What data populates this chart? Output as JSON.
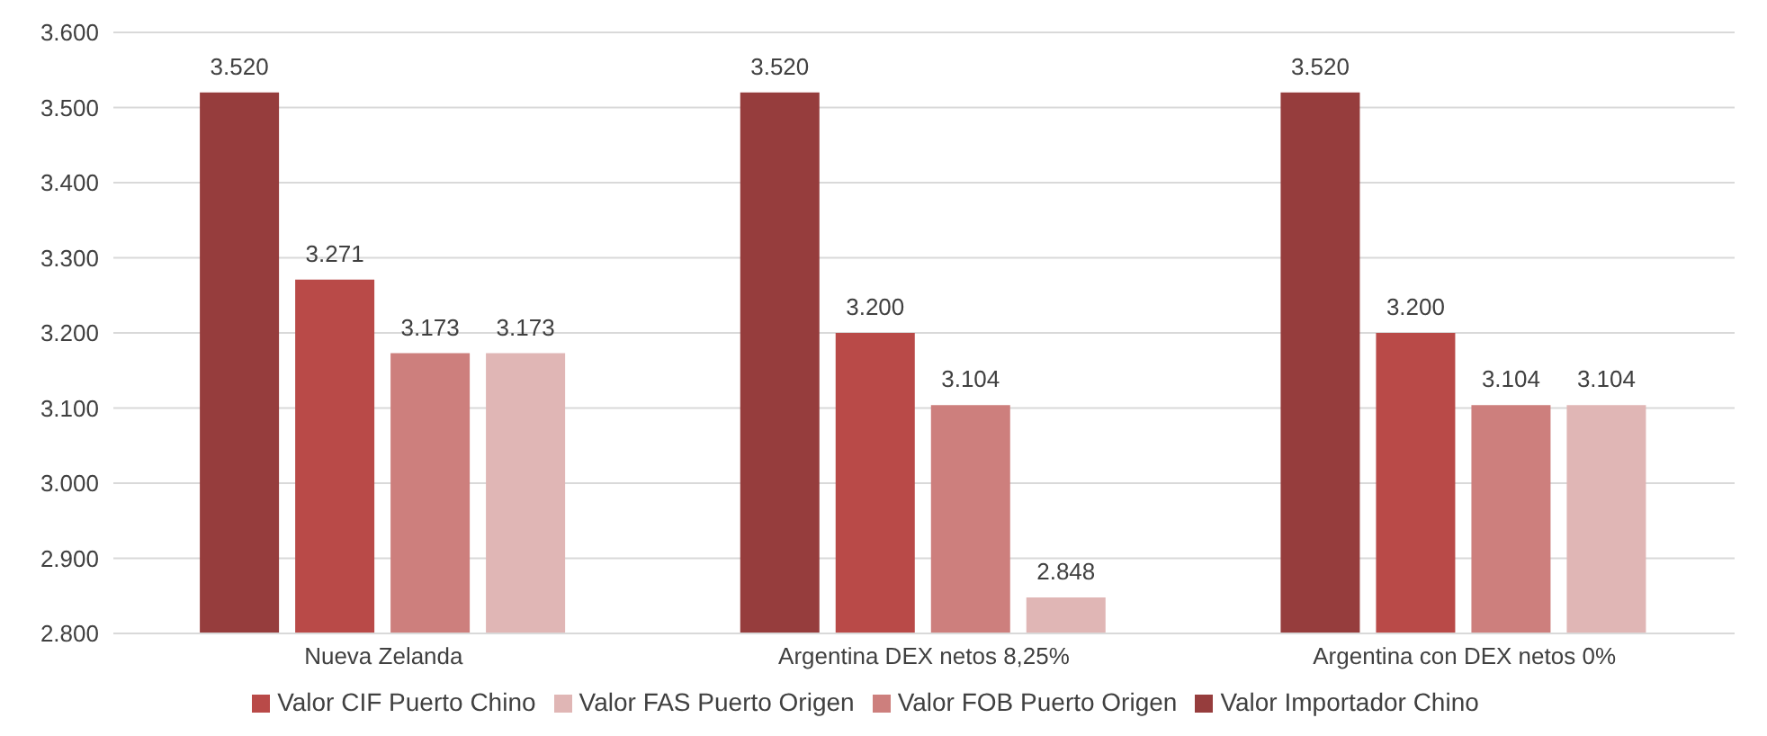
{
  "chart_data": {
    "type": "bar",
    "categories": [
      "Nueva Zelanda",
      "Argentina DEX netos 8,25%",
      "Argentina con DEX netos 0%"
    ],
    "series": [
      {
        "name": "Valor Importador Chino",
        "color": "#963d3d",
        "values": [
          3520,
          3520,
          3520
        ],
        "value_labels": [
          "3.520",
          "3.520",
          "3.520"
        ]
      },
      {
        "name": "Valor CIF Puerto Chino",
        "color": "#b94a48",
        "values": [
          3271,
          3200,
          3200
        ],
        "value_labels": [
          "3.271",
          "3.200",
          "3.200"
        ]
      },
      {
        "name": "Valor FOB Puerto Origen",
        "color": "#cd7f7d",
        "values": [
          3173,
          3104,
          3104
        ],
        "value_labels": [
          "3.173",
          "3.104",
          "3.104"
        ]
      },
      {
        "name": "Valor FAS Puerto Origen",
        "color": "#e0b6b5",
        "values": [
          3173,
          2848,
          3104
        ],
        "value_labels": [
          "3.173",
          "2.848",
          "3.104"
        ]
      }
    ],
    "ylim": [
      2800,
      3600
    ],
    "yticks": [
      {
        "value": 2800,
        "label": "2.800"
      },
      {
        "value": 2900,
        "label": "2.900"
      },
      {
        "value": 3000,
        "label": "3.000"
      },
      {
        "value": 3100,
        "label": "3.100"
      },
      {
        "value": 3200,
        "label": "3.200"
      },
      {
        "value": 3300,
        "label": "3.300"
      },
      {
        "value": 3400,
        "label": "3.400"
      },
      {
        "value": 3500,
        "label": "3.500"
      },
      {
        "value": 3600,
        "label": "3.600"
      }
    ],
    "grid": "y",
    "legend": "bottom"
  }
}
